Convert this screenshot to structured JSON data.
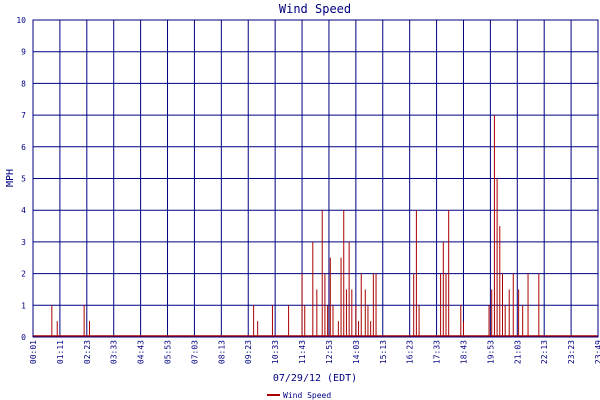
{
  "chart_data": {
    "type": "line",
    "title": "Wind Speed",
    "ylabel": "MPH",
    "xlabel": "07/29/12 (EDT)",
    "ylim": [
      0,
      10
    ],
    "yticks": [
      "0",
      "1",
      "2",
      "3",
      "4",
      "5",
      "6",
      "7",
      "8",
      "9",
      "10"
    ],
    "xticks": [
      "00:01",
      "01:11",
      "02:23",
      "03:33",
      "04:43",
      "05:53",
      "07:03",
      "08:13",
      "09:23",
      "10:33",
      "11:43",
      "12:53",
      "14:03",
      "15:13",
      "16:23",
      "17:33",
      "18:43",
      "19:53",
      "21:03",
      "22:13",
      "23:23",
      "23:49"
    ],
    "grid": true,
    "legend": "bottom",
    "series": [
      {
        "name": "Wind Speed",
        "color": "#aa0000",
        "points": [
          [
            0.7,
            1
          ],
          [
            0.9,
            0.5
          ],
          [
            1.9,
            1
          ],
          [
            2.1,
            0.5
          ],
          [
            8.2,
            1
          ],
          [
            8.35,
            0.5
          ],
          [
            8.9,
            1
          ],
          [
            9.5,
            1
          ],
          [
            10.0,
            2
          ],
          [
            10.1,
            1
          ],
          [
            10.4,
            3
          ],
          [
            10.55,
            1.5
          ],
          [
            10.75,
            4
          ],
          [
            10.85,
            2
          ],
          [
            10.95,
            1
          ],
          [
            11.05,
            2.5
          ],
          [
            11.15,
            1
          ],
          [
            11.35,
            0.5
          ],
          [
            11.45,
            2.5
          ],
          [
            11.55,
            4
          ],
          [
            11.65,
            1.5
          ],
          [
            11.75,
            3
          ],
          [
            11.85,
            1.5
          ],
          [
            12.0,
            1
          ],
          [
            12.1,
            0.5
          ],
          [
            12.2,
            2
          ],
          [
            12.35,
            1.5
          ],
          [
            12.45,
            1
          ],
          [
            12.55,
            0.5
          ],
          [
            12.65,
            2
          ],
          [
            12.75,
            2
          ],
          [
            14.15,
            2
          ],
          [
            14.25,
            4
          ],
          [
            14.35,
            1
          ],
          [
            15.15,
            2
          ],
          [
            15.25,
            3
          ],
          [
            15.35,
            2
          ],
          [
            15.45,
            4
          ],
          [
            15.9,
            1
          ],
          [
            16.0,
            0.5
          ],
          [
            16.95,
            1
          ],
          [
            17.05,
            1.5
          ],
          [
            17.15,
            7
          ],
          [
            17.25,
            5
          ],
          [
            17.35,
            3.5
          ],
          [
            17.45,
            2
          ],
          [
            17.55,
            1
          ],
          [
            17.7,
            1.5
          ],
          [
            17.85,
            2
          ],
          [
            18.05,
            1.5
          ],
          [
            18.2,
            1
          ],
          [
            18.4,
            2
          ],
          [
            18.8,
            2
          ]
        ]
      }
    ]
  }
}
